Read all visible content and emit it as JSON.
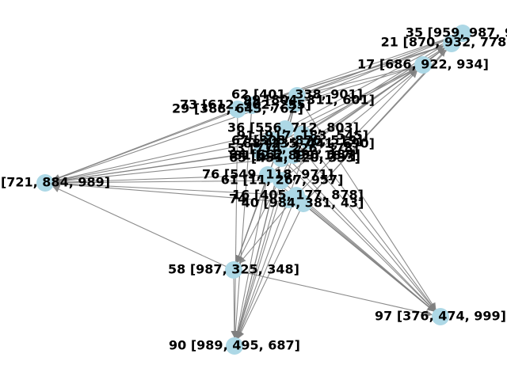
{
  "colors": {
    "node": "#add8e6",
    "edge": "#808080",
    "label": "#000000",
    "background": "#ffffff"
  },
  "nodes": [
    {
      "id": "35",
      "label": "35 [959, 987, 9"
    },
    {
      "id": "21",
      "label": "21 [870, 932, 778"
    },
    {
      "id": "17",
      "label": "17 [686, 922, 934]"
    },
    {
      "id": "left",
      "label": "[721, 884, 989]"
    },
    {
      "id": "76",
      "label": "76 [549, 118, 971]"
    },
    {
      "id": "61",
      "label": "61 [11, 267, 957]"
    },
    {
      "id": "16",
      "label": "16 [405, 177, 878]"
    },
    {
      "id": "40",
      "label": "40 [984, 381, 43]"
    },
    {
      "id": "74",
      "label": "74"
    },
    {
      "id": "58",
      "label": "58 [987, 325, 348]"
    },
    {
      "id": "90",
      "label": "90 [989, 495, 687]"
    },
    {
      "id": "97",
      "label": "97 [376, 474, 999]"
    },
    {
      "id": "c1",
      "label": "62 [401, 338, 901]"
    },
    {
      "id": "c2",
      "label": "73 [612, 902, 255]"
    },
    {
      "id": "c3",
      "label": "99 [804, 311, 601]"
    },
    {
      "id": "c4",
      "label": "29 [388, 645, 762]"
    },
    {
      "id": "c5",
      "label": "36 [556, 712, 803]"
    },
    {
      "id": "c6",
      "label": "91 [917, 183, 545]"
    },
    {
      "id": "c7",
      "label": "67 [308, 876, 519]"
    },
    {
      "id": "c8",
      "label": "88 [235, 441, 690]"
    },
    {
      "id": "c9",
      "label": "53 [774, 226, 378]"
    },
    {
      "id": "c10",
      "label": "94 [662, 590, 187]"
    },
    {
      "id": "c11",
      "label": "81 [21, 899, 187]"
    },
    {
      "id": "c12",
      "label": "65 [451, 120, 333]"
    }
  ],
  "edges": [
    [
      "c1",
      "35"
    ],
    [
      "c2",
      "35"
    ],
    [
      "c3",
      "35"
    ],
    [
      "c5",
      "35"
    ],
    [
      "c9",
      "35"
    ],
    [
      "c1",
      "21"
    ],
    [
      "c2",
      "21"
    ],
    [
      "c4",
      "21"
    ],
    [
      "c6",
      "21"
    ],
    [
      "c10",
      "21"
    ],
    [
      "c1",
      "17"
    ],
    [
      "c3",
      "17"
    ],
    [
      "c7",
      "17"
    ],
    [
      "c8",
      "17"
    ],
    [
      "c11",
      "17"
    ],
    [
      "c1",
      "left"
    ],
    [
      "c2",
      "left"
    ],
    [
      "c4",
      "left"
    ],
    [
      "c5",
      "left"
    ],
    [
      "c7",
      "left"
    ],
    [
      "c9",
      "left"
    ],
    [
      "c11",
      "left"
    ],
    [
      "c12",
      "left"
    ],
    [
      "76",
      "left"
    ],
    [
      "61",
      "left"
    ],
    [
      "16",
      "left"
    ],
    [
      "40",
      "left"
    ],
    [
      "58",
      "left"
    ],
    [
      "c1",
      "58"
    ],
    [
      "c3",
      "58"
    ],
    [
      "c6",
      "58"
    ],
    [
      "76",
      "58"
    ],
    [
      "16",
      "58"
    ],
    [
      "c1",
      "90"
    ],
    [
      "c2",
      "90"
    ],
    [
      "c3",
      "90"
    ],
    [
      "c4",
      "90"
    ],
    [
      "c8",
      "90"
    ],
    [
      "c10",
      "90"
    ],
    [
      "76",
      "90"
    ],
    [
      "61",
      "90"
    ],
    [
      "16",
      "90"
    ],
    [
      "40",
      "90"
    ],
    [
      "58",
      "90"
    ],
    [
      "c1",
      "97"
    ],
    [
      "c5",
      "97"
    ],
    [
      "c6",
      "97"
    ],
    [
      "c9",
      "97"
    ],
    [
      "c12",
      "97"
    ],
    [
      "76",
      "97"
    ],
    [
      "61",
      "97"
    ],
    [
      "16",
      "97"
    ],
    [
      "40",
      "97"
    ],
    [
      "58",
      "97"
    ],
    [
      "40",
      "35"
    ],
    [
      "40",
      "21"
    ],
    [
      "16",
      "17"
    ],
    [
      "61",
      "35"
    ],
    [
      "76",
      "21"
    ]
  ]
}
